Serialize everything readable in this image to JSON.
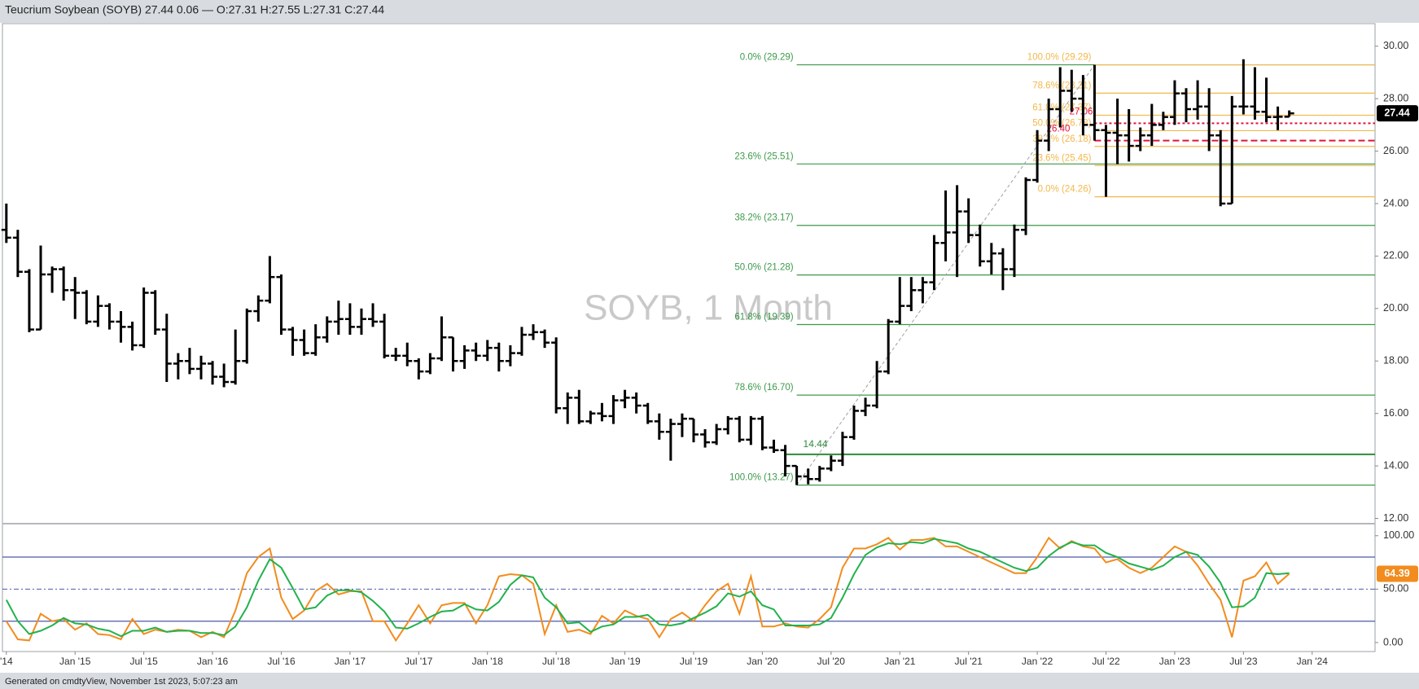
{
  "header": {
    "text": "Teucrium Soybean (SOYB) 27.44 0.06 — O:27.31 H:27.55 L:27.31 C:27.44"
  },
  "footer": {
    "text": "Generated on cmdtyView, November 1st 2023, 5:07:23 am"
  },
  "chart_data": [
    {
      "type": "ohlc",
      "title": "SOYB, 1 Month",
      "color": "#000000",
      "x": [
        "2014-07",
        "2014-08",
        "2014-09",
        "2014-10",
        "2014-11",
        "2014-12",
        "2015-01",
        "2015-02",
        "2015-03",
        "2015-04",
        "2015-05",
        "2015-06",
        "2015-07",
        "2015-08",
        "2015-09",
        "2015-10",
        "2015-11",
        "2015-12",
        "2016-01",
        "2016-02",
        "2016-03",
        "2016-04",
        "2016-05",
        "2016-06",
        "2016-07",
        "2016-08",
        "2016-09",
        "2016-10",
        "2016-11",
        "2016-12",
        "2017-01",
        "2017-02",
        "2017-03",
        "2017-04",
        "2017-05",
        "2017-06",
        "2017-07",
        "2017-08",
        "2017-09",
        "2017-10",
        "2017-11",
        "2017-12",
        "2018-01",
        "2018-02",
        "2018-03",
        "2018-04",
        "2018-05",
        "2018-06",
        "2018-07",
        "2018-08",
        "2018-09",
        "2018-10",
        "2018-11",
        "2018-12",
        "2019-01",
        "2019-02",
        "2019-03",
        "2019-04",
        "2019-05",
        "2019-06",
        "2019-07",
        "2019-08",
        "2019-09",
        "2019-10",
        "2019-11",
        "2019-12",
        "2020-01",
        "2020-02",
        "2020-03",
        "2020-04",
        "2020-05",
        "2020-06",
        "2020-07",
        "2020-08",
        "2020-09",
        "2020-10",
        "2020-11",
        "2020-12",
        "2021-01",
        "2021-02",
        "2021-03",
        "2021-04",
        "2021-05",
        "2021-06",
        "2021-07",
        "2021-08",
        "2021-09",
        "2021-10",
        "2021-11",
        "2021-12",
        "2022-01",
        "2022-02",
        "2022-03",
        "2022-04",
        "2022-05",
        "2022-06",
        "2022-07",
        "2022-08",
        "2022-09",
        "2022-10",
        "2022-11",
        "2022-12",
        "2023-01",
        "2023-02",
        "2023-03",
        "2023-04",
        "2023-05",
        "2023-06",
        "2023-07",
        "2023-08",
        "2023-09",
        "2023-10",
        "2023-11"
      ],
      "open": [
        23.0,
        22.7,
        21.4,
        19.2,
        21.3,
        21.5,
        20.7,
        20.6,
        19.5,
        20.1,
        19.5,
        19.3,
        18.6,
        20.6,
        19.2,
        17.9,
        18.0,
        17.7,
        17.9,
        17.4,
        17.2,
        18.0,
        19.9,
        20.3,
        21.2,
        19.2,
        18.8,
        18.3,
        18.9,
        19.5,
        19.6,
        19.3,
        19.6,
        19.5,
        18.2,
        18.2,
        18.0,
        17.6,
        18.1,
        18.9,
        18.0,
        18.4,
        18.2,
        18.5,
        18.0,
        18.3,
        19.0,
        19.1,
        18.7,
        16.2,
        16.6,
        15.7,
        16.0,
        15.9,
        16.5,
        16.6,
        16.3,
        15.7,
        15.3,
        15.6,
        15.8,
        15.2,
        14.9,
        15.4,
        15.8,
        15.0,
        15.8,
        14.7,
        14.6,
        14.0,
        13.6,
        13.5,
        13.9,
        14.2,
        15.1,
        16.1,
        16.3,
        17.6,
        19.5,
        20.1,
        20.7,
        21.0,
        22.5,
        22.9,
        23.7,
        22.8,
        21.8,
        22.1,
        21.5,
        23.0,
        24.9,
        26.4,
        27.6,
        28.3,
        28.0,
        27.0,
        26.8,
        26.7,
        26.6,
        26.2,
        26.6,
        27.0,
        27.3,
        28.2,
        27.6,
        27.7,
        26.6,
        24.0,
        27.7,
        27.7,
        27.5,
        27.3,
        27.31
      ],
      "high": [
        24.0,
        23.0,
        21.5,
        22.4,
        21.6,
        21.6,
        21.2,
        20.7,
        20.5,
        20.2,
        19.9,
        19.5,
        20.8,
        20.7,
        19.8,
        18.3,
        18.5,
        18.2,
        18.0,
        17.9,
        19.2,
        20.0,
        20.5,
        22.0,
        21.3,
        19.3,
        19.2,
        19.4,
        19.7,
        20.3,
        20.2,
        20.0,
        20.2,
        19.8,
        18.5,
        18.7,
        18.1,
        18.3,
        19.7,
        18.9,
        18.6,
        18.7,
        18.8,
        18.7,
        18.6,
        19.3,
        19.4,
        19.2,
        18.9,
        16.8,
        16.9,
        16.1,
        16.4,
        16.7,
        16.9,
        16.8,
        16.4,
        16.0,
        15.8,
        16.0,
        15.8,
        15.4,
        15.6,
        15.9,
        15.9,
        15.9,
        15.9,
        15.0,
        14.8,
        14.0,
        13.9,
        14.0,
        14.4,
        15.3,
        16.3,
        16.6,
        18.0,
        19.6,
        21.2,
        21.2,
        21.2,
        22.8,
        24.5,
        24.7,
        24.2,
        23.2,
        22.5,
        22.3,
        23.2,
        25.0,
        26.8,
        28.0,
        29.2,
        29.1,
        28.9,
        29.29,
        27.0,
        28.0,
        27.6,
        26.9,
        27.8,
        27.5,
        28.7,
        28.4,
        28.7,
        28.4,
        26.8,
        28.1,
        29.5,
        29.2,
        28.8,
        27.7,
        27.55
      ],
      "low": [
        22.5,
        21.2,
        19.1,
        19.2,
        20.6,
        20.3,
        19.6,
        19.4,
        19.3,
        19.2,
        18.7,
        18.4,
        18.5,
        19.0,
        17.2,
        17.3,
        17.5,
        17.3,
        17.1,
        17.0,
        17.1,
        17.9,
        19.5,
        20.2,
        19.0,
        18.2,
        18.2,
        18.2,
        18.7,
        19.0,
        19.0,
        19.0,
        19.3,
        18.1,
        18.0,
        17.8,
        17.3,
        17.5,
        18.0,
        17.6,
        17.7,
        18.0,
        18.0,
        17.6,
        17.8,
        18.2,
        18.8,
        18.5,
        16.0,
        15.6,
        15.6,
        15.6,
        15.7,
        15.6,
        16.2,
        16.0,
        15.6,
        15.0,
        14.2,
        15.1,
        14.9,
        14.7,
        14.8,
        15.2,
        14.9,
        14.8,
        14.6,
        14.5,
        13.6,
        13.27,
        13.3,
        13.4,
        13.8,
        14.0,
        15.0,
        15.9,
        16.2,
        17.5,
        19.4,
        19.9,
        20.2,
        20.7,
        21.8,
        21.2,
        22.5,
        21.6,
        21.3,
        20.7,
        21.2,
        22.8,
        24.8,
        26.0,
        26.9,
        27.5,
        26.6,
        26.4,
        24.26,
        25.5,
        25.6,
        26.0,
        26.2,
        26.8,
        27.0,
        27.1,
        27.2,
        26.0,
        23.9,
        24.0,
        27.4,
        27.2,
        27.1,
        26.8,
        27.31
      ],
      "close": [
        22.7,
        21.4,
        19.2,
        21.3,
        21.5,
        20.7,
        20.6,
        19.5,
        20.1,
        19.5,
        19.3,
        18.6,
        20.6,
        19.2,
        17.9,
        18.0,
        17.7,
        17.9,
        17.4,
        17.2,
        18.0,
        19.9,
        20.3,
        21.2,
        19.2,
        18.8,
        18.3,
        18.9,
        19.5,
        19.6,
        19.3,
        19.6,
        19.5,
        18.2,
        18.2,
        18.0,
        17.6,
        18.1,
        18.9,
        18.0,
        18.4,
        18.2,
        18.5,
        18.0,
        18.3,
        19.0,
        19.1,
        18.7,
        16.2,
        16.6,
        15.7,
        16.0,
        15.9,
        16.5,
        16.6,
        16.3,
        15.7,
        15.3,
        15.6,
        15.8,
        15.2,
        14.9,
        15.4,
        15.8,
        15.0,
        15.8,
        14.7,
        14.6,
        14.0,
        13.6,
        13.5,
        13.9,
        14.2,
        15.1,
        16.1,
        16.3,
        17.6,
        19.5,
        20.1,
        20.7,
        21.0,
        22.5,
        22.9,
        23.7,
        22.8,
        21.8,
        22.1,
        21.5,
        23.0,
        24.9,
        26.4,
        27.6,
        28.3,
        28.0,
        27.0,
        26.8,
        26.7,
        26.6,
        26.2,
        26.6,
        27.0,
        27.3,
        28.2,
        27.6,
        27.7,
        26.6,
        24.0,
        27.7,
        27.7,
        27.5,
        27.3,
        27.31,
        27.44
      ],
      "ylim": [
        11.83,
        30.86
      ],
      "yticks": [
        {
          "value": 12,
          "label": "12.00"
        },
        {
          "value": 14,
          "label": "14.00"
        },
        {
          "value": 16,
          "label": "16.00"
        },
        {
          "value": 18,
          "label": "18.00"
        },
        {
          "value": 20,
          "label": "20.00"
        },
        {
          "value": 22,
          "label": "22.00"
        },
        {
          "value": 24,
          "label": "24.00"
        },
        {
          "value": 26,
          "label": "26.00"
        },
        {
          "value": 28,
          "label": "28.00"
        },
        {
          "value": 30,
          "label": "30.00"
        }
      ],
      "xticks": [
        {
          "value": "2014-07",
          "label": "'14"
        },
        {
          "value": "2015-01",
          "label": "Jan '15"
        },
        {
          "value": "2015-07",
          "label": "Jul '15"
        },
        {
          "value": "2016-01",
          "label": "Jan '16"
        },
        {
          "value": "2016-07",
          "label": "Jul '16"
        },
        {
          "value": "2017-01",
          "label": "Jan '17"
        },
        {
          "value": "2017-07",
          "label": "Jul '17"
        },
        {
          "value": "2018-01",
          "label": "Jan '18"
        },
        {
          "value": "2018-07",
          "label": "Jul '18"
        },
        {
          "value": "2019-01",
          "label": "Jan '19"
        },
        {
          "value": "2019-07",
          "label": "Jul '19"
        },
        {
          "value": "2020-01",
          "label": "Jan '20"
        },
        {
          "value": "2020-07",
          "label": "Jul '20"
        },
        {
          "value": "2021-01",
          "label": "Jan '21"
        },
        {
          "value": "2021-07",
          "label": "Jul '21"
        },
        {
          "value": "2022-01",
          "label": "Jan '22"
        },
        {
          "value": "2022-07",
          "label": "Jul '22"
        },
        {
          "value": "2023-01",
          "label": "Jan '23"
        },
        {
          "value": "2023-07",
          "label": "Jul '23"
        },
        {
          "value": "2024-01",
          "label": "Jan '24"
        }
      ],
      "retracements": [
        {
          "color": "#3c9a4a",
          "start": "2020-04",
          "levels": [
            {
              "label": "0.0% (29.29)",
              "value": 29.29
            },
            {
              "label": "23.6% (25.51)",
              "value": 25.51
            },
            {
              "label": "38.2% (23.17)",
              "value": 23.17
            },
            {
              "label": "50.0% (21.28)",
              "value": 21.28
            },
            {
              "label": "61.8% (19.39)",
              "value": 19.39
            },
            {
              "label": "78.6% (16.70)",
              "value": 16.7
            },
            {
              "label": "100.0% (13.27)",
              "value": 13.27
            }
          ]
        },
        {
          "color": "#f2b84b",
          "start": "2022-06",
          "levels": [
            {
              "label": "100.0% (29.29)",
              "value": 29.29
            },
            {
              "label": "78.6% (28.21)",
              "value": 28.21
            },
            {
              "label": "61.8% (27.37)",
              "value": 27.37
            },
            {
              "label": "50.0% (26.78)",
              "value": 26.78
            },
            {
              "label": "38.2% (26.18)",
              "value": 26.18
            },
            {
              "label": "23.6% (25.45)",
              "value": 25.45
            },
            {
              "label": "0.0% (24.26)",
              "value": 24.26
            }
          ]
        }
      ],
      "lines": [
        {
          "value": 14.44,
          "label": "14.44",
          "color": "#2e8b3a",
          "start": "2020-03",
          "style": "solid"
        },
        {
          "value": 27.06,
          "label": "27.06",
          "color": "#e0143c",
          "start": "2022-06",
          "style": "dotted"
        },
        {
          "value": 26.4,
          "label": "26.40",
          "color": "#e0143c",
          "start": "2022-06",
          "style": "dashed"
        }
      ],
      "trend": {
        "from": "2020-04",
        "to": "2022-06"
      },
      "last_price": {
        "value": 27.44,
        "label": "27.44"
      }
    },
    {
      "type": "stochastic",
      "series": [
        {
          "color": "#f28c1e",
          "values": [
            20,
            3,
            2,
            27,
            20,
            22,
            12,
            18,
            8,
            7,
            3,
            22,
            8,
            12,
            10,
            12,
            11,
            5,
            10,
            5,
            30,
            65,
            80,
            88,
            42,
            22,
            30,
            48,
            55,
            45,
            48,
            48,
            20,
            20,
            2,
            18,
            35,
            18,
            35,
            37,
            37,
            18,
            35,
            62,
            64,
            63,
            55,
            8,
            35,
            10,
            12,
            8,
            25,
            18,
            30,
            25,
            22,
            5,
            22,
            28,
            20,
            35,
            48,
            55,
            27,
            62,
            15,
            15,
            18,
            15,
            14,
            22,
            33,
            70,
            88,
            88,
            92,
            98,
            87,
            96,
            96,
            98,
            90,
            90,
            85,
            80,
            75,
            70,
            65,
            65,
            80,
            98,
            88,
            95,
            90,
            88,
            75,
            78,
            70,
            65,
            70,
            80,
            90,
            85,
            72,
            55,
            40,
            5,
            58,
            62,
            75,
            55,
            64.39
          ]
        },
        {
          "color": "#22b24c",
          "values": [
            40,
            20,
            8,
            11,
            16,
            23,
            18,
            17,
            13,
            11,
            6,
            11,
            11,
            14,
            10,
            11,
            11,
            9,
            9,
            7,
            15,
            33,
            58,
            78,
            70,
            51,
            31,
            33,
            44,
            49,
            49,
            47,
            39,
            29,
            14,
            13,
            18,
            24,
            29,
            30,
            36,
            31,
            30,
            38,
            54,
            63,
            61,
            42,
            33,
            18,
            19,
            10,
            15,
            17,
            24,
            24,
            26,
            17,
            16,
            18,
            23,
            28,
            34,
            46,
            43,
            48,
            35,
            31,
            16,
            16,
            16,
            17,
            23,
            42,
            64,
            82,
            89,
            93,
            92,
            94,
            93,
            97,
            95,
            93,
            88,
            85,
            80,
            75,
            70,
            67,
            70,
            81,
            89,
            94,
            91,
            91,
            84,
            80,
            74,
            71,
            68,
            72,
            80,
            85,
            82,
            71,
            56,
            33,
            34,
            42,
            65,
            64,
            65
          ]
        }
      ],
      "ylim": [
        -8.4,
        110.5
      ],
      "yticks": [
        {
          "value": 0,
          "label": "0.00"
        },
        {
          "value": 50,
          "label": "50.00"
        },
        {
          "value": 100,
          "label": "100.00"
        }
      ],
      "bands": [
        20,
        80
      ],
      "band_color": "#4a5aa8",
      "midline": 50,
      "last_value": {
        "value": 64.39,
        "label": "64.39"
      }
    }
  ]
}
